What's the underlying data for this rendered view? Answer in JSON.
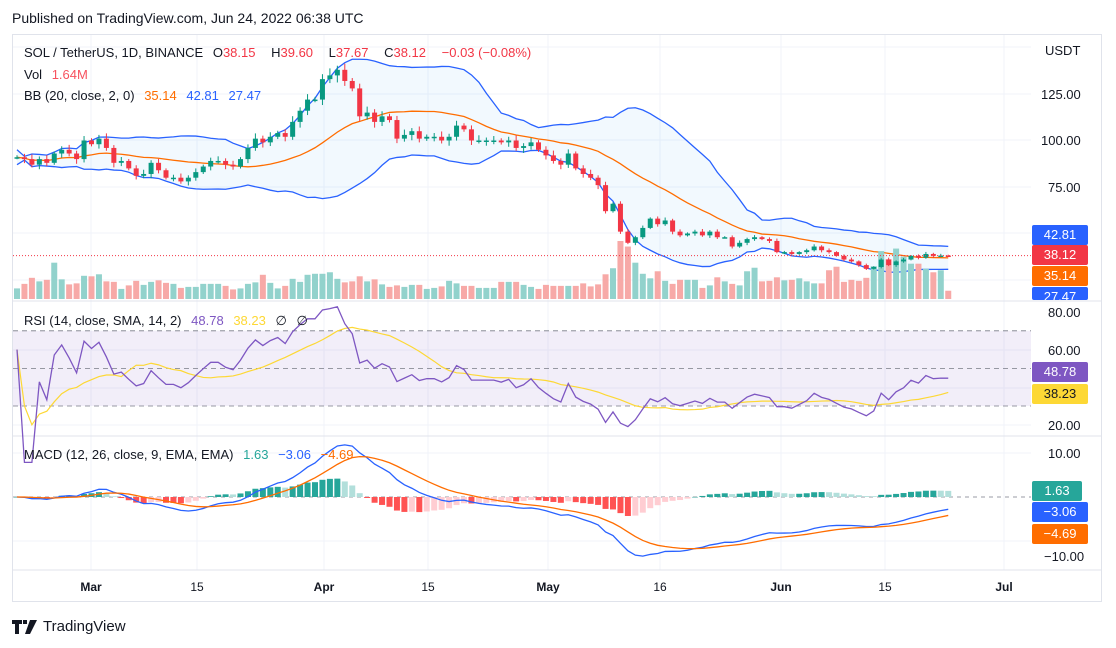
{
  "published": "Published on TradingView.com, Jun 24, 2022 06:38 UTC",
  "symbol": {
    "title": "SOL / TetherUS, 1D, BINANCE",
    "o_label": "O",
    "open": "38.15",
    "h_label": "H",
    "high": "39.60",
    "l_label": "L",
    "low": "37.67",
    "c_label": "C",
    "close": "38.12",
    "change": "−0.03 (−0.08%)"
  },
  "volume_legend": {
    "label": "Vol",
    "value": "1.64M"
  },
  "bb_legend": {
    "label": "BB (20, close, 2, 0)",
    "basis": "35.14",
    "upper": "42.81",
    "lower": "27.47"
  },
  "rsi_legend": {
    "label": "RSI (14, close, SMA, 14, 2)",
    "rsi": "48.78",
    "sma": "38.23",
    "na1": "∅",
    "na2": "∅"
  },
  "macd_legend": {
    "label": "MACD (12, 26, close, 9, EMA, EMA)",
    "hist": "1.63",
    "macd": "−3.06",
    "signal": "−4.69"
  },
  "price_axis": {
    "currency": "USDT",
    "ticks": [
      "125.00",
      "100.00",
      "75.00"
    ]
  },
  "rsi_axis": {
    "ticks": [
      "80.00",
      "60.00",
      "20.00"
    ]
  },
  "macd_axis": {
    "ticks": [
      "10.00",
      "−10.00"
    ]
  },
  "tags": {
    "bb_upper": "42.81",
    "last_price": "38.12",
    "bb_basis": "35.14",
    "bb_lower": "27.47",
    "rsi": "48.78",
    "rsi_sma": "38.23",
    "macd_hist": "1.63",
    "macd": "−3.06",
    "macd_signal": "−4.69"
  },
  "time_axis": [
    "Mar",
    "15",
    "Apr",
    "15",
    "May",
    "16",
    "Jun",
    "15",
    "Jul"
  ],
  "colors": {
    "up": "#089981",
    "down": "#f23645",
    "vol_up": "#92d2cc",
    "vol_down": "#f7a9a7",
    "bb_band": "#2962ff",
    "bb_basis": "#ff6d00",
    "rsi": "#7e57c2",
    "rsi_sma": "#fdd835",
    "macd": "#2962ff",
    "signal": "#ff6d00"
  },
  "logo": "TradingView",
  "chart_data": {
    "type": "candlestick",
    "first_date": "Feb 19",
    "last_date": "Jun 24",
    "first_open": 91,
    "close": [
      91,
      90,
      87,
      90,
      88,
      93,
      95,
      93,
      90,
      100,
      98,
      101,
      96,
      88,
      89,
      85,
      81,
      82,
      88,
      84,
      80,
      80,
      78,
      80,
      83,
      86,
      89,
      89,
      87,
      86,
      90,
      96,
      101,
      99,
      102,
      104,
      102,
      110,
      116,
      122,
      122,
      133,
      135,
      138,
      132,
      128,
      113,
      115,
      110,
      113,
      111,
      101,
      103,
      105,
      101,
      102,
      102,
      100,
      102,
      108,
      106,
      100,
      100,
      100,
      100,
      99,
      100,
      96,
      97,
      99,
      95,
      92,
      89,
      87,
      93,
      85,
      82,
      80,
      76,
      62,
      66,
      51,
      45,
      48,
      53,
      58,
      55,
      57,
      51,
      49,
      50,
      51,
      49,
      51,
      48,
      48,
      43,
      45,
      47,
      48,
      47,
      46,
      40,
      40,
      39,
      40,
      41,
      43,
      41,
      40,
      38,
      36,
      35,
      33,
      31,
      32,
      36,
      33,
      35,
      36,
      38,
      37,
      39,
      38,
      38.15,
      38.12
    ],
    "volume_millions": [
      2.1,
      3.0,
      4.2,
      3.5,
      3.8,
      7.2,
      3.9,
      2.9,
      3.1,
      4.6,
      4.5,
      4.9,
      3.5,
      3.4,
      2.0,
      2.7,
      3.6,
      2.8,
      3.4,
      3.7,
      3.2,
      3.0,
      2.2,
      2.4,
      2.4,
      3.0,
      3.0,
      3.0,
      2.6,
      1.9,
      2.1,
      3.0,
      3.3,
      4.8,
      3.2,
      2.1,
      2.6,
      4.0,
      3.4,
      4.8,
      5.0,
      5.0,
      5.3,
      4.0,
      3.3,
      3.5,
      4.5,
      3.5,
      3.9,
      2.9,
      2.4,
      2.7,
      2.4,
      2.8,
      2.8,
      2.0,
      2.2,
      2.5,
      3.6,
      3.1,
      2.6,
      2.6,
      2.2,
      2.2,
      2.2,
      3.4,
      3.4,
      3.4,
      2.8,
      2.4,
      2.0,
      2.8,
      2.6,
      2.6,
      2.6,
      2.6,
      3.1,
      2.5,
      2.9,
      4.9,
      6.1,
      11.5,
      10.4,
      7.2,
      5.0,
      4.1,
      5.5,
      3.6,
      3.0,
      3.8,
      3.8,
      3.8,
      2.2,
      2.7,
      4.3,
      3.5,
      3.0,
      2.7,
      5.5,
      6.2,
      3.5,
      3.6,
      4.3,
      3.7,
      3.8,
      4.1,
      3.5,
      3.1,
      3.1,
      5.7,
      6.4,
      3.4,
      3.8,
      3.6,
      4.2,
      6.5,
      9.5,
      7.9,
      10.0,
      8.4,
      7.0,
      7.0,
      6.0,
      5.3,
      5.7,
      1.64
    ],
    "price_ylim": [
      15,
      150
    ],
    "rsi_levels": [
      70,
      50,
      30
    ],
    "rsi_ylim": [
      15,
      85
    ],
    "macd_ylim": [
      -13,
      13
    ],
    "grid": true
  }
}
